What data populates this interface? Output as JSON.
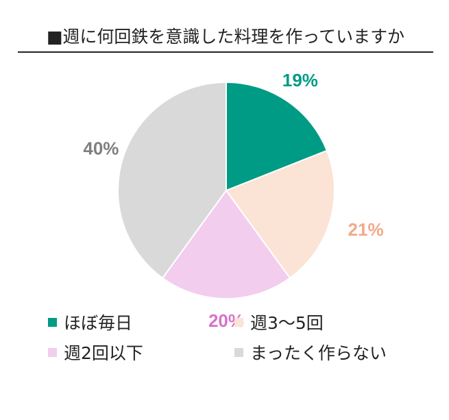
{
  "chart_data": {
    "type": "pie",
    "title": "■週に何回鉄を意識した料理を作っていますか",
    "categories": [
      "ほぼ毎日",
      "週3〜5回",
      "週2回以下",
      "まったく作らない"
    ],
    "values": [
      19,
      21,
      20,
      40
    ],
    "labels": [
      "19%",
      "21%",
      "20%",
      "40%"
    ],
    "colors": [
      "#009B84",
      "#FBE3D6",
      "#F2CDEE",
      "#D9D9D9"
    ],
    "label_colors": [
      "#009B84",
      "#F2A98A",
      "#D673C9",
      "#7F7F7F"
    ],
    "start_angle_deg": 0,
    "direction": "clockwise",
    "legend_position": "bottom"
  }
}
